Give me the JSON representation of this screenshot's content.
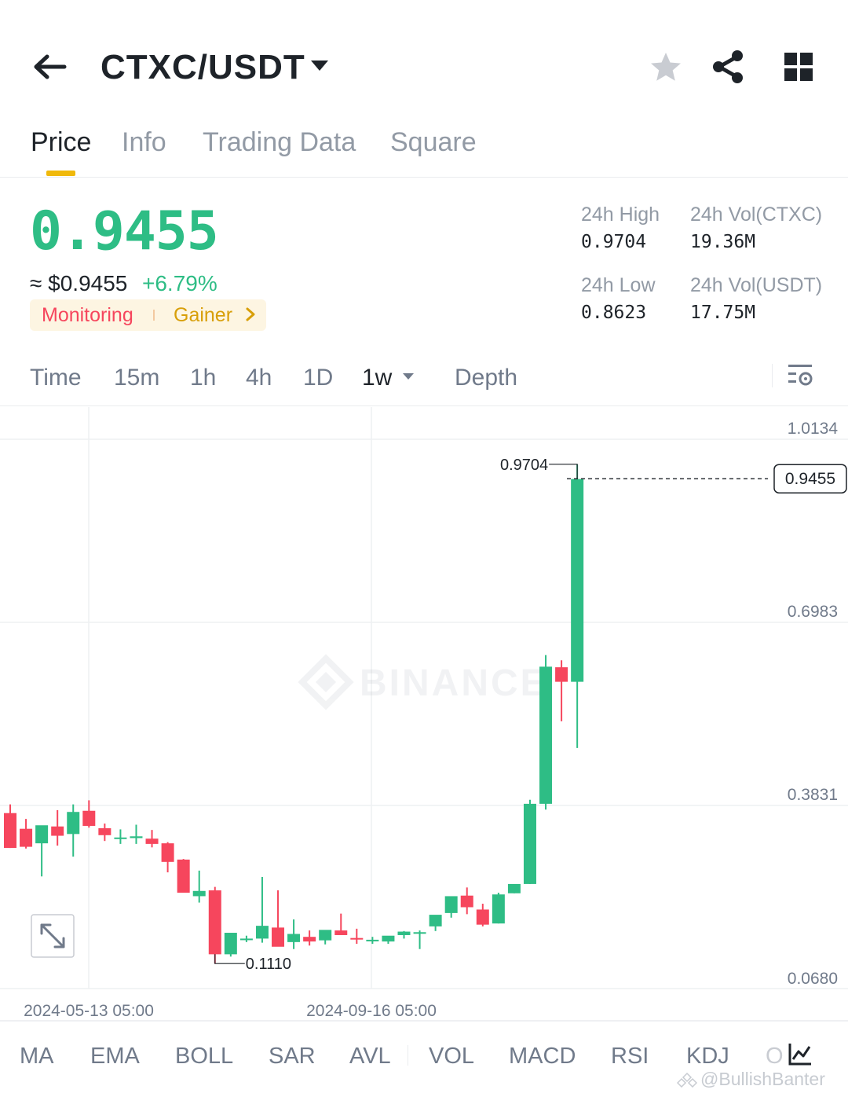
{
  "header": {
    "pair": "CTXC/USDT",
    "icons": [
      "back-arrow-icon",
      "dropdown-caret-icon",
      "star-icon",
      "share-icon",
      "grid-menu-icon"
    ]
  },
  "tabs": [
    {
      "label": "Price",
      "active": true
    },
    {
      "label": "Info",
      "active": false
    },
    {
      "label": "Trading Data",
      "active": false
    },
    {
      "label": "Square",
      "active": false
    }
  ],
  "price": {
    "last": "0.9455",
    "fiat": "≈ $0.9455",
    "change": "+6.79%",
    "tags": [
      "Monitoring",
      "Gainer"
    ],
    "up_color": "#2ebd85",
    "down_color": "#f6465d"
  },
  "stats": {
    "high_label": "24h High",
    "high_value": "0.9704",
    "low_label": "24h Low",
    "low_value": "0.8623",
    "vol_base_label": "24h Vol(CTXC)",
    "vol_base_value": "19.36M",
    "vol_quote_label": "24h Vol(USDT)",
    "vol_quote_value": "17.75M"
  },
  "timeframes": [
    {
      "label": "Time",
      "active": false
    },
    {
      "label": "15m",
      "active": false
    },
    {
      "label": "1h",
      "active": false
    },
    {
      "label": "4h",
      "active": false
    },
    {
      "label": "1D",
      "active": false
    },
    {
      "label": "1w",
      "active": true
    },
    {
      "label": "Depth",
      "active": false
    }
  ],
  "chart_data": {
    "type": "candlestick",
    "interval": "1w",
    "y_ticks": [
      1.0134,
      0.6983,
      0.3831,
      0.068
    ],
    "y_tick_labels": [
      "1.0134",
      "0.6983",
      "0.3831",
      "0.0680"
    ],
    "ylim": [
      0.068,
      1.0134
    ],
    "x_tick_labels": [
      "2024-05-13 05:00",
      "2024-09-16 05:00"
    ],
    "x_tick_candle_index": [
      5,
      23
    ],
    "last_price_label": "0.9455",
    "last_price": 0.9455,
    "max_label": "0.9704",
    "max_value": 0.9704,
    "min_label": "0.1110",
    "min_value": 0.111,
    "watermark": "BINANCE",
    "candles": [
      {
        "o": 0.37,
        "h": 0.385,
        "l": 0.31,
        "c": 0.31
      },
      {
        "o": 0.343,
        "h": 0.36,
        "l": 0.309,
        "c": 0.312
      },
      {
        "o": 0.318,
        "h": 0.345,
        "l": 0.261,
        "c": 0.349
      },
      {
        "o": 0.347,
        "h": 0.375,
        "l": 0.314,
        "c": 0.331
      },
      {
        "o": 0.334,
        "h": 0.385,
        "l": 0.295,
        "c": 0.372
      },
      {
        "o": 0.374,
        "h": 0.392,
        "l": 0.345,
        "c": 0.348
      },
      {
        "o": 0.344,
        "h": 0.352,
        "l": 0.322,
        "c": 0.332
      },
      {
        "o": 0.327,
        "h": 0.342,
        "l": 0.317,
        "c": 0.328
      },
      {
        "o": 0.327,
        "h": 0.35,
        "l": 0.317,
        "c": 0.33
      },
      {
        "o": 0.326,
        "h": 0.341,
        "l": 0.311,
        "c": 0.317
      },
      {
        "o": 0.318,
        "h": 0.32,
        "l": 0.268,
        "c": 0.286
      },
      {
        "o": 0.29,
        "h": 0.291,
        "l": 0.234,
        "c": 0.233
      },
      {
        "o": 0.227,
        "h": 0.271,
        "l": 0.216,
        "c": 0.236
      },
      {
        "o": 0.237,
        "h": 0.243,
        "l": 0.111,
        "c": 0.127
      },
      {
        "o": 0.127,
        "h": 0.155,
        "l": 0.123,
        "c": 0.164
      },
      {
        "o": 0.152,
        "h": 0.159,
        "l": 0.148,
        "c": 0.154
      },
      {
        "o": 0.154,
        "h": 0.26,
        "l": 0.147,
        "c": 0.176
      },
      {
        "o": 0.173,
        "h": 0.237,
        "l": 0.145,
        "c": 0.14
      },
      {
        "o": 0.148,
        "h": 0.187,
        "l": 0.136,
        "c": 0.162
      },
      {
        "o": 0.157,
        "h": 0.168,
        "l": 0.142,
        "c": 0.149
      },
      {
        "o": 0.151,
        "h": 0.164,
        "l": 0.144,
        "c": 0.169
      },
      {
        "o": 0.168,
        "h": 0.197,
        "l": 0.161,
        "c": 0.16
      },
      {
        "o": 0.155,
        "h": 0.171,
        "l": 0.145,
        "c": 0.153
      },
      {
        "o": 0.15,
        "h": 0.157,
        "l": 0.145,
        "c": 0.152
      },
      {
        "o": 0.149,
        "h": 0.157,
        "l": 0.145,
        "c": 0.159
      },
      {
        "o": 0.16,
        "h": 0.167,
        "l": 0.154,
        "c": 0.166
      },
      {
        "o": 0.163,
        "h": 0.168,
        "l": 0.136,
        "c": 0.165
      },
      {
        "o": 0.175,
        "h": 0.193,
        "l": 0.167,
        "c": 0.195
      },
      {
        "o": 0.198,
        "h": 0.224,
        "l": 0.19,
        "c": 0.227
      },
      {
        "o": 0.228,
        "h": 0.242,
        "l": 0.196,
        "c": 0.208
      },
      {
        "o": 0.204,
        "h": 0.214,
        "l": 0.175,
        "c": 0.178
      },
      {
        "o": 0.18,
        "h": 0.233,
        "l": 0.18,
        "c": 0.23
      },
      {
        "o": 0.232,
        "h": 0.246,
        "l": 0.232,
        "c": 0.248
      },
      {
        "o": 0.248,
        "h": 0.393,
        "l": 0.248,
        "c": 0.386
      },
      {
        "o": 0.386,
        "h": 0.642,
        "l": 0.376,
        "c": 0.622
      },
      {
        "o": 0.621,
        "h": 0.633,
        "l": 0.528,
        "c": 0.596
      },
      {
        "o": 0.596,
        "h": 0.97,
        "l": 0.482,
        "c": 0.945
      }
    ]
  },
  "indicators": [
    "MA",
    "EMA",
    "BOLL",
    "SAR",
    "AVL",
    "VOL",
    "MACD",
    "RSI",
    "KDJ",
    "O"
  ],
  "watermark_text": "@BullishBanter"
}
